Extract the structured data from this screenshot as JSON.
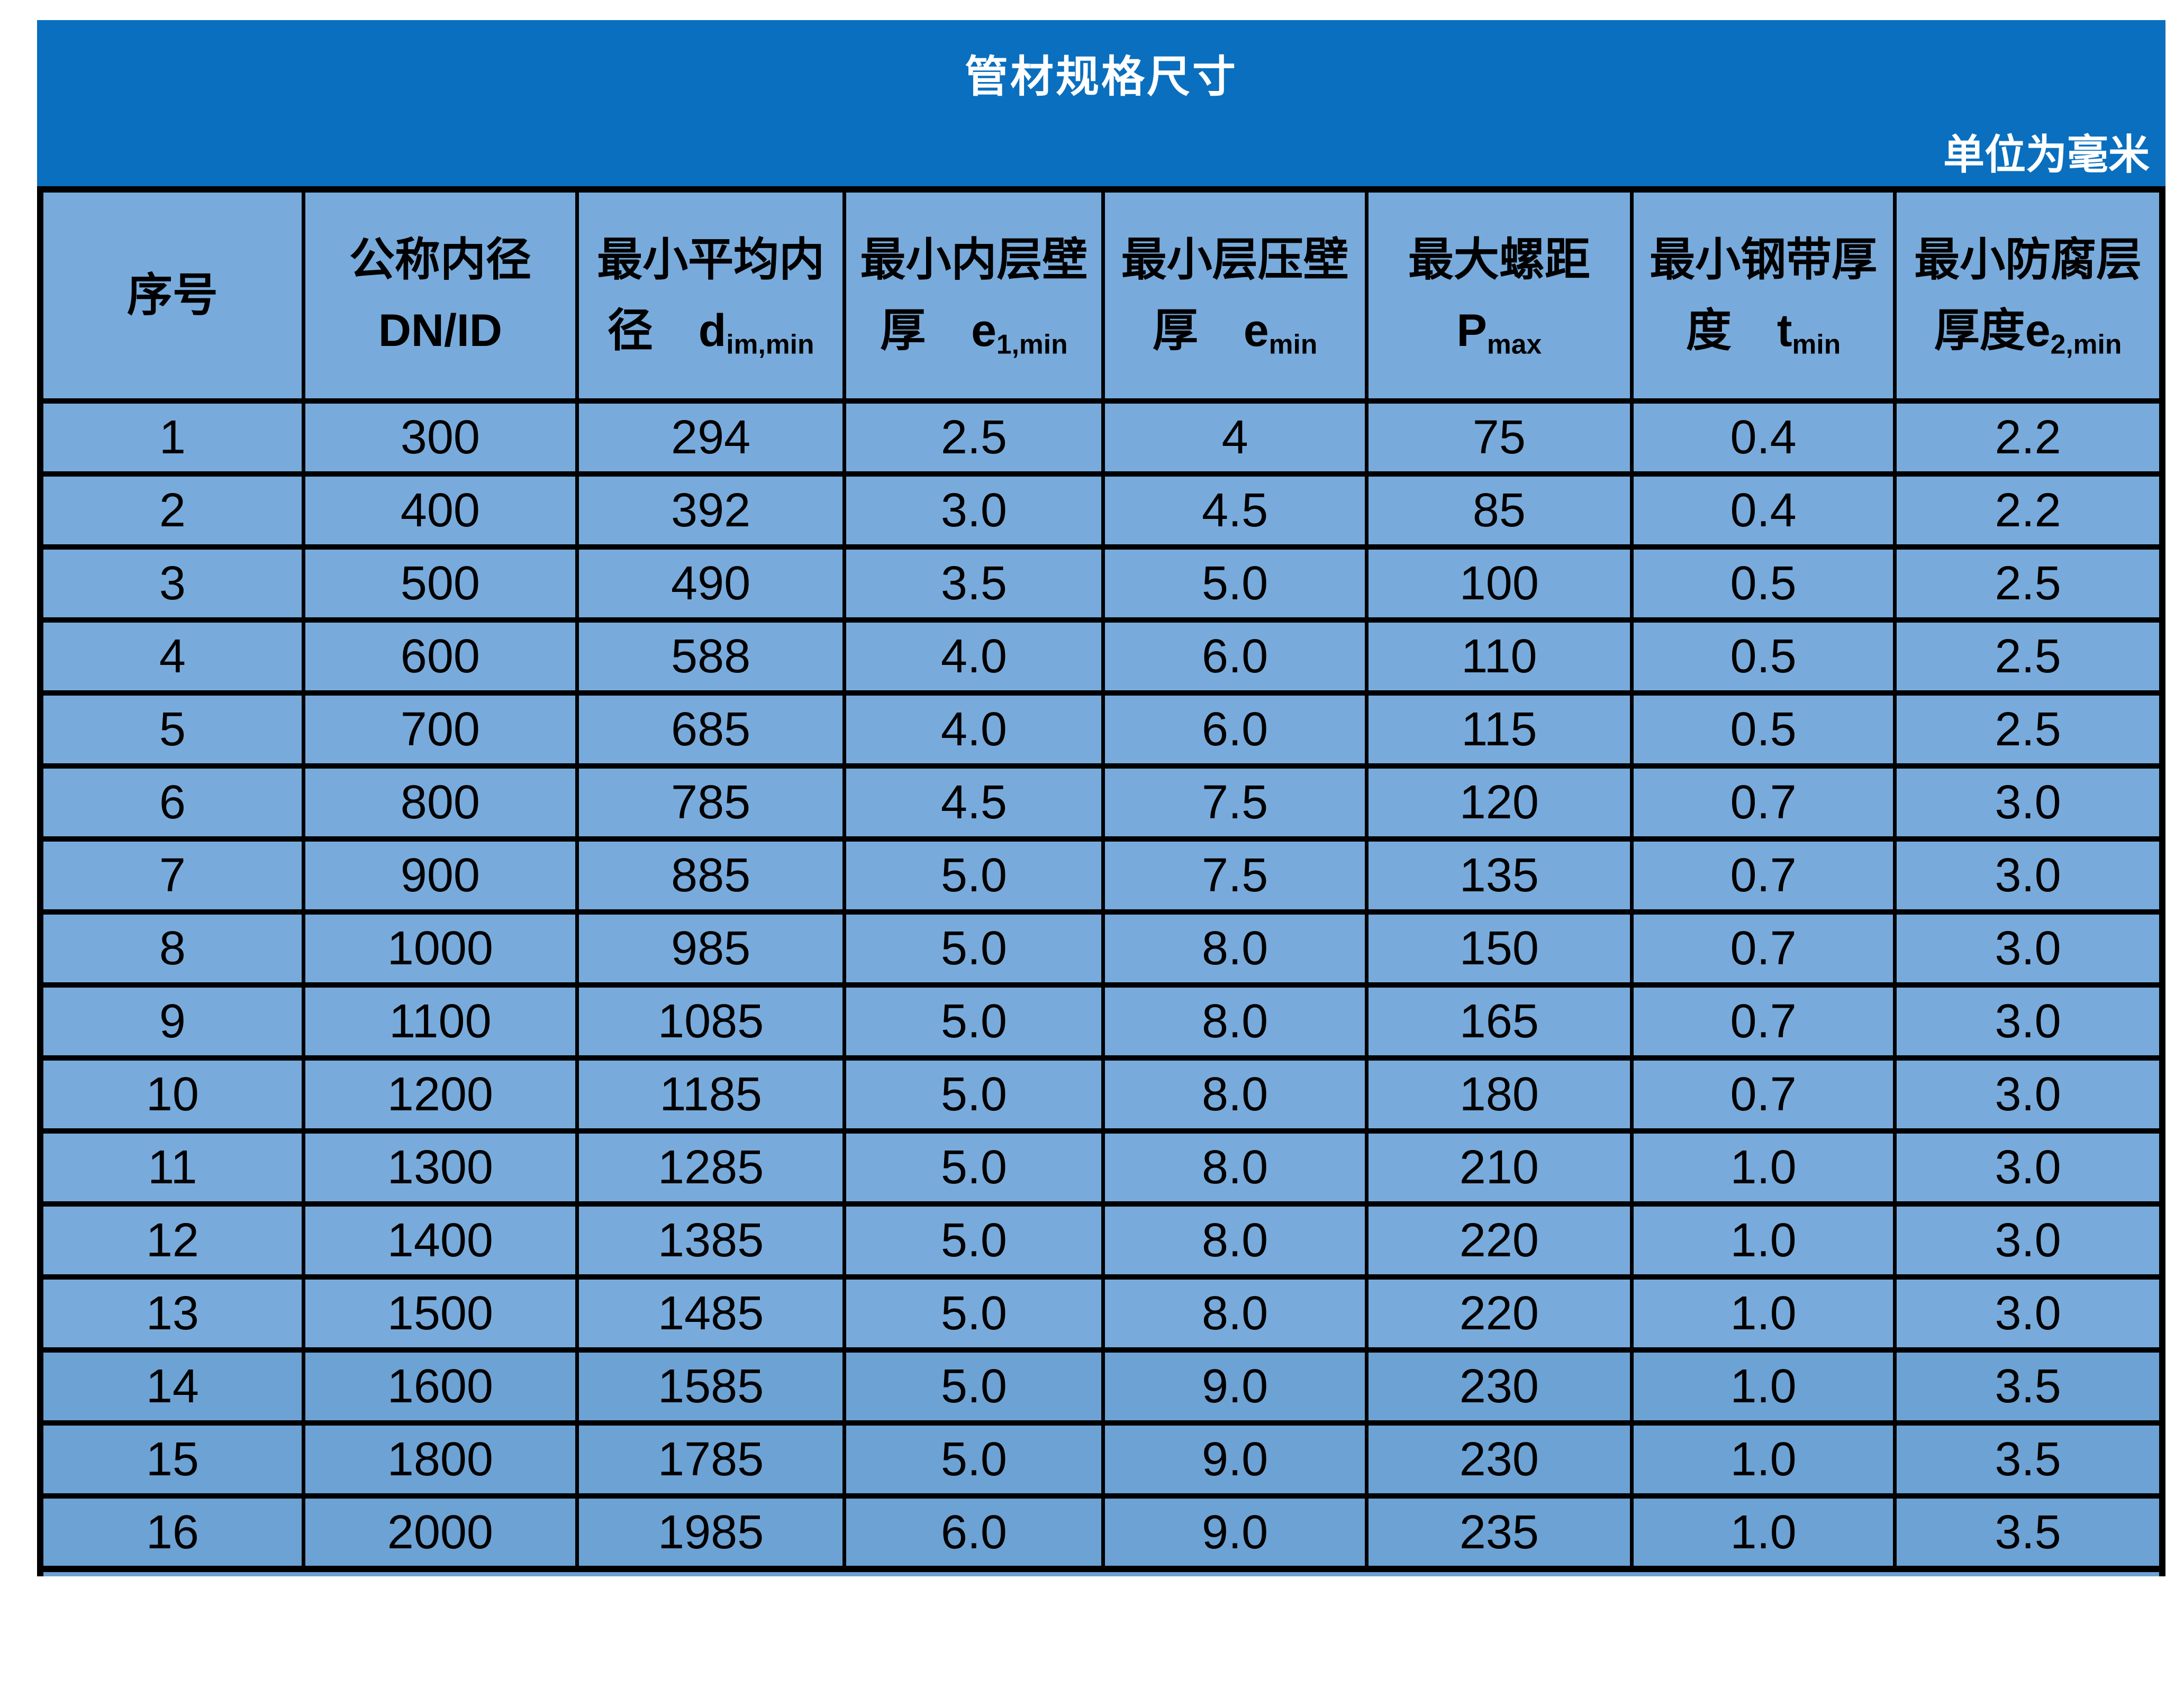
{
  "banner": {
    "title": "管材规格尺寸",
    "unit_note": "单位为毫米"
  },
  "table": {
    "columns": [
      {
        "label": "序号",
        "gap": "",
        "sym": "",
        "sub": ""
      },
      {
        "label": "公称内径",
        "gap": " ",
        "sym": "DN/ID",
        "sub": ""
      },
      {
        "label": "最小平均内径",
        "gap": "　",
        "sym": "d",
        "sub": "im,min"
      },
      {
        "label": "最小内层壁厚",
        "gap": "　",
        "sym": "e",
        "sub": "1,min"
      },
      {
        "label": "最小层压壁厚",
        "gap": "　",
        "sym": "e",
        "sub": "min"
      },
      {
        "label": "最大螺距",
        "gap": " ",
        "sym": "P",
        "sub": "max"
      },
      {
        "label": "最小钢带厚度",
        "gap": "　",
        "sym": "t",
        "sub": "min"
      },
      {
        "label": "最小防腐层厚度",
        "gap": "",
        "sym": "e",
        "sub": "2,min"
      }
    ],
    "rows": [
      [
        "1",
        "300",
        "294",
        "2.5",
        "4",
        "75",
        "0.4",
        "2.2"
      ],
      [
        "2",
        "400",
        "392",
        "3.0",
        "4.5",
        "85",
        "0.4",
        "2.2"
      ],
      [
        "3",
        "500",
        "490",
        "3.5",
        "5.0",
        "100",
        "0.5",
        "2.5"
      ],
      [
        "4",
        "600",
        "588",
        "4.0",
        "6.0",
        "110",
        "0.5",
        "2.5"
      ],
      [
        "5",
        "700",
        "685",
        "4.0",
        "6.0",
        "115",
        "0.5",
        "2.5"
      ],
      [
        "6",
        "800",
        "785",
        "4.5",
        "7.5",
        "120",
        "0.7",
        "3.0"
      ],
      [
        "7",
        "900",
        "885",
        "5.0",
        "7.5",
        "135",
        "0.7",
        "3.0"
      ],
      [
        "8",
        "1000",
        "985",
        "5.0",
        "8.0",
        "150",
        "0.7",
        "3.0"
      ],
      [
        "9",
        "1100",
        "1085",
        "5.0",
        "8.0",
        "165",
        "0.7",
        "3.0"
      ],
      [
        "10",
        "1200",
        "1185",
        "5.0",
        "8.0",
        "180",
        "0.7",
        "3.0"
      ],
      [
        "11",
        "1300",
        "1285",
        "5.0",
        "8.0",
        "210",
        "1.0",
        "3.0"
      ],
      [
        "12",
        "1400",
        "1385",
        "5.0",
        "8.0",
        "220",
        "1.0",
        "3.0"
      ],
      [
        "13",
        "1500",
        "1485",
        "5.0",
        "8.0",
        "220",
        "1.0",
        "3.0"
      ],
      [
        "14",
        "1600",
        "1585",
        "5.0",
        "9.0",
        "230",
        "1.0",
        "3.5"
      ],
      [
        "15",
        "1800",
        "1785",
        "5.0",
        "9.0",
        "230",
        "1.0",
        "3.5"
      ],
      [
        "16",
        "2000",
        "1985",
        "6.0",
        "9.0",
        "235",
        "1.0",
        "3.5"
      ]
    ],
    "dark_rows_from_serial": "14"
  },
  "colors": {
    "banner": "#0a6fbe",
    "cell_light": "#78abdc",
    "cell_dark": "#6da2d4",
    "border": "#000000",
    "banner_text": "#ffffff"
  }
}
